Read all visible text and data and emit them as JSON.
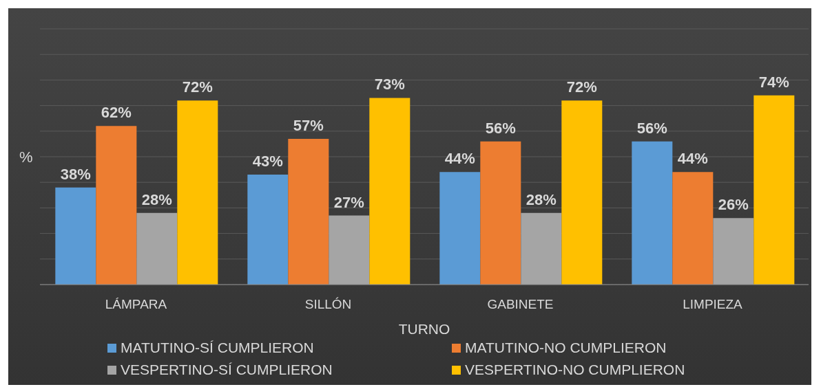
{
  "chart_data": {
    "type": "bar",
    "xlabel": "TURNO",
    "ylabel": "%",
    "categories": [
      "LÁMPARA",
      "SILLÓN",
      "GABINETE",
      "LIMPIEZA"
    ],
    "series": [
      {
        "name": "MATUTINO-SÍ CUMPLIERON",
        "color": "#5b9bd5",
        "values": [
          38,
          43,
          44,
          56
        ],
        "value_labels": [
          "38%",
          "43%",
          "44%",
          "56%"
        ]
      },
      {
        "name": "MATUTINO-NO CUMPLIERON",
        "color": "#ed7d31",
        "values": [
          62,
          57,
          56,
          44
        ],
        "value_labels": [
          "62%",
          "57%",
          "56%",
          "44%"
        ]
      },
      {
        "name": "VESPERTINO-SÍ CUMPLIERON",
        "color": "#a5a5a5",
        "values": [
          28,
          27,
          28,
          26
        ],
        "value_labels": [
          "28%",
          "27%",
          "28%",
          "26%"
        ]
      },
      {
        "name": "VESPERTINO-NO CUMPLIERON",
        "color": "#ffc000",
        "values": [
          72,
          73,
          72,
          74
        ],
        "value_labels": [
          "72%",
          "73%",
          "72%",
          "74%"
        ]
      }
    ],
    "ylim": [
      0,
      100
    ],
    "tick_labels": "x",
    "grid": "y",
    "legend": "bottom"
  }
}
